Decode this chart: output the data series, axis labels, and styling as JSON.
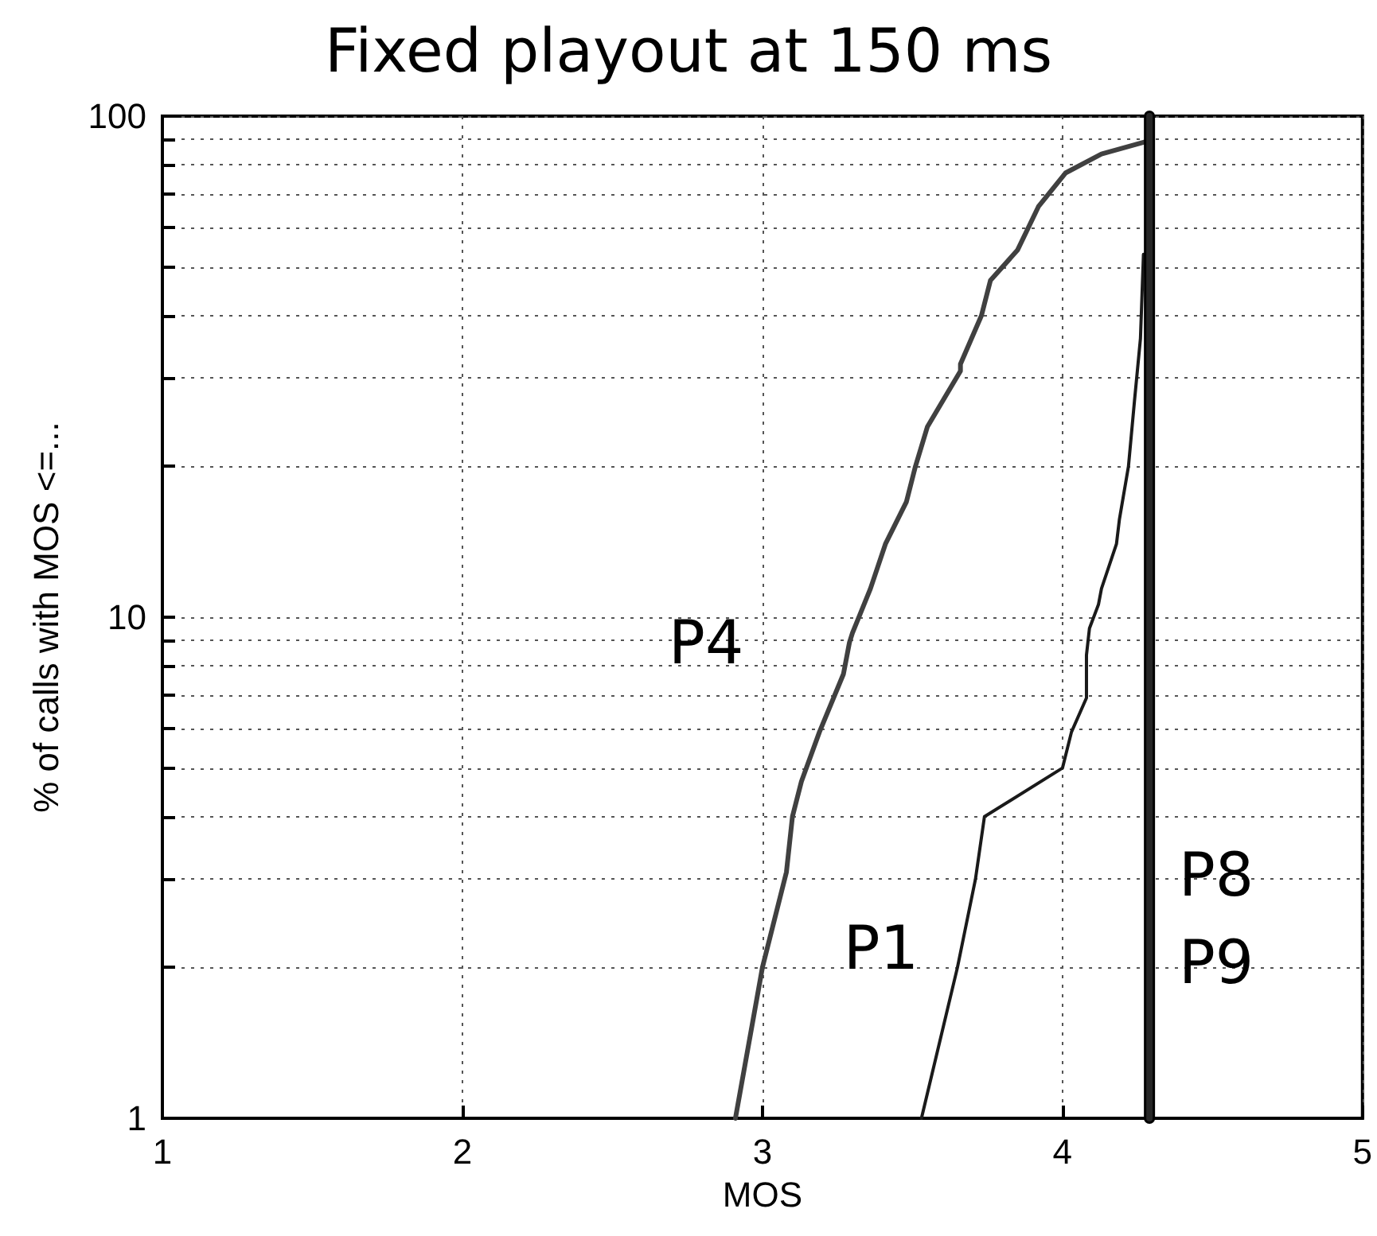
{
  "chart_data": {
    "type": "line",
    "title": "Fixed playout at 150 ms",
    "xlabel": "MOS",
    "ylabel": "% of calls with MOS <=...",
    "xlim": [
      1,
      5
    ],
    "xticks": [
      1,
      2,
      3,
      4,
      5
    ],
    "ylim": [
      1,
      100
    ],
    "yticks": [
      1,
      {
        "value": 2,
        "label": null
      },
      {
        "value": 3,
        "label": null
      },
      {
        "value": 4,
        "label": null
      },
      {
        "value": 5,
        "label": null
      },
      {
        "value": 6,
        "label": null
      },
      {
        "value": 7,
        "label": null
      },
      {
        "value": 8,
        "label": null
      },
      {
        "value": 9,
        "label": null
      },
      10,
      {
        "value": 20,
        "label": null
      },
      {
        "value": 30,
        "label": null
      },
      {
        "value": 40,
        "label": null
      },
      {
        "value": 50,
        "label": null
      },
      {
        "value": 60,
        "label": null
      },
      {
        "value": 70,
        "label": null
      },
      {
        "value": 80,
        "label": null
      },
      {
        "value": 90,
        "label": null
      },
      100
    ],
    "log": "y",
    "grid": true,
    "legend": false,
    "marker": "none",
    "line_style": "solid",
    "series": [
      {
        "name": "P4",
        "color": "#404040",
        "x": [
          2.91,
          3.0,
          3.08,
          3.1,
          3.13,
          3.19,
          3.27,
          3.29,
          3.3,
          3.36,
          3.41,
          3.48,
          3.51,
          3.55,
          3.66,
          3.66,
          3.73,
          3.76,
          3.85,
          3.92,
          4.01,
          4.13,
          4.28
        ],
        "values": [
          1,
          2,
          3.1,
          4,
          4.7,
          5.9,
          7.7,
          8.9,
          9.3,
          11.4,
          14,
          17,
          20,
          24,
          31,
          32,
          40,
          47,
          54,
          66,
          77,
          84,
          89
        ]
      },
      {
        "name": "P1",
        "color": "#1a1a1a",
        "x": [
          3.53,
          3.65,
          3.71,
          3.74,
          4.0,
          4.03,
          4.08,
          4.08,
          4.09,
          4.12,
          4.13,
          4.18,
          4.19,
          4.22,
          4.24,
          4.26,
          4.27
        ],
        "values": [
          1,
          2,
          3,
          4,
          5,
          5.9,
          6.9,
          8.4,
          9.5,
          10.6,
          11.4,
          14,
          15.7,
          20,
          27,
          36,
          53
        ]
      },
      {
        "name": "P8",
        "color": "#000000",
        "x": [
          4.29,
          4.29
        ],
        "values": [
          1,
          100
        ]
      },
      {
        "name": "P9",
        "color": "#262626",
        "x": [
          4.29,
          4.29
        ],
        "values": [
          1,
          100
        ]
      }
    ]
  }
}
